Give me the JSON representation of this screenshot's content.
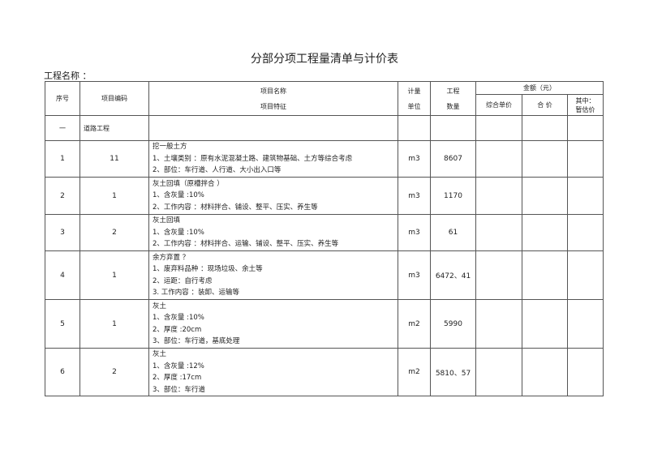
{
  "title": "分部分项工程量清单与计价表",
  "project_name_label": "工程名称 ：",
  "headers": {
    "seq": "序号",
    "code": "项目编码",
    "name": "项目名称",
    "feature": "项目特征",
    "unit_1": "计量",
    "unit_2": "单位",
    "qty_1": "工程",
    "qty_2": "数量",
    "amount": "金额（元）",
    "unit_price": "综合单价",
    "total": "合 价",
    "est_1": "其中：",
    "est_2": "暂估价"
  },
  "section": {
    "seq": "一",
    "name": "道路工程"
  },
  "rows": [
    {
      "seq": "1",
      "code": "11",
      "lines": [
        "挖一般土方",
        "1、土壤类别 ：原有水泥混凝土路、建筑物基础、土方等综合考虑",
        "2、部位：车行道、人行道、大小出入口等"
      ],
      "unit": "m3",
      "qty": "8607"
    },
    {
      "seq": "2",
      "code": "1",
      "lines": [
        "灰土回填（原槽拌合 ）",
        "1、含灰量 :10%",
        "2、工作内容 ：材料拌合、铺设、整平、压实、养生等"
      ],
      "unit": "m3",
      "qty": "1170"
    },
    {
      "seq": "3",
      "code": "2",
      "lines": [
        "灰土回填",
        "1、含灰量 :10%",
        "2、工作内容 ：材料拌合、运输、铺设、整平、压实、养生等"
      ],
      "unit": "m3",
      "qty": "61"
    },
    {
      "seq": "4",
      "code": "1",
      "lines": [
        "余方弃置 ？",
        "1、废弃料品种 ：现场垃圾、余土等",
        "2、运距：自行考虑",
        "3. 工作内容 ：装卸、运输等"
      ],
      "unit": "m3",
      "qty": "6472、41"
    },
    {
      "seq": "5",
      "code": "1",
      "lines": [
        "灰土",
        "1、含灰量 :10%",
        "2、厚度 :20cm",
        "3、部位：车行道，基底处理"
      ],
      "unit": "m2",
      "qty": "5990"
    },
    {
      "seq": "6",
      "code": "2",
      "lines": [
        "灰土",
        "1、含灰量 :12%",
        "2、厚度 :17cm",
        "3、部位：车行道"
      ],
      "unit": "m2",
      "qty": "5810、57"
    }
  ]
}
